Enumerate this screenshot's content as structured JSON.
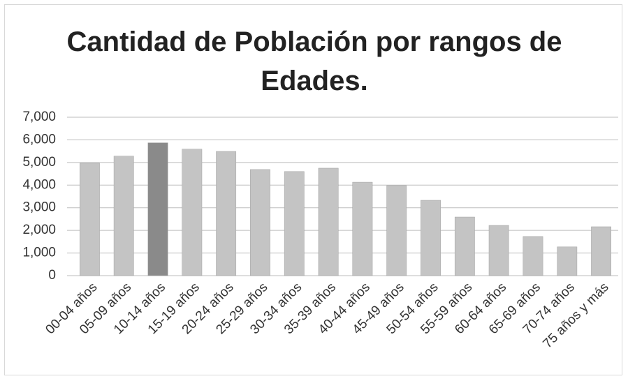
{
  "chart_data": {
    "type": "bar",
    "title": "Cantidad de Población por rangos de Edades.",
    "categories": [
      "00-04 años",
      "05-09 años",
      "10-14 años",
      "15-19 años",
      "20-24 años",
      "25-29 años",
      "30-34 años",
      "35-39 años",
      "40-44 años",
      "45-49 años",
      "50-54 años",
      "55-59 años",
      "60-64 años",
      "65-69 años",
      "70-74 años",
      "75 años y más"
    ],
    "values": [
      4970,
      5280,
      5870,
      5590,
      5490,
      4690,
      4600,
      4750,
      4130,
      3980,
      3330,
      2590,
      2220,
      1730,
      1270,
      2160
    ],
    "colors": [
      "#c4c4c4",
      "#c4c4c4",
      "#8a8a8a",
      "#c4c4c4",
      "#c4c4c4",
      "#c4c4c4",
      "#c4c4c4",
      "#c4c4c4",
      "#c4c4c4",
      "#c4c4c4",
      "#c4c4c4",
      "#c4c4c4",
      "#c4c4c4",
      "#c4c4c4",
      "#c4c4c4",
      "#c4c4c4"
    ],
    "ylim": [
      0,
      7000
    ],
    "yticks": [
      0,
      {
        "value": 1000,
        "label": "1,000"
      },
      {
        "value": 2000,
        "label": "2,000"
      },
      {
        "value": 3000,
        "label": "3,000"
      },
      {
        "value": 4000,
        "label": "4,000"
      },
      {
        "value": 5000,
        "label": "5,000"
      },
      {
        "value": 6000,
        "label": "6,000"
      },
      {
        "value": 7000,
        "label": "7,000"
      }
    ],
    "grid": true
  }
}
